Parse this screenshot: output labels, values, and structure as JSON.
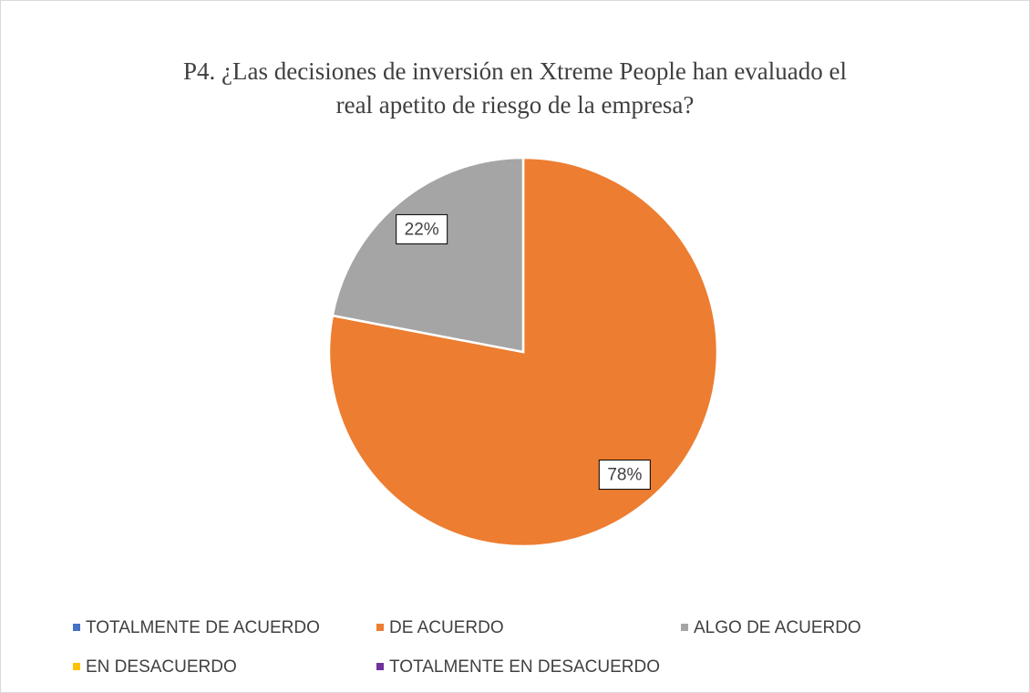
{
  "chart_data": {
    "type": "pie",
    "title": "P4. ¿Las decisiones de inversión en Xtreme People han evaluado el real apetito de riesgo de la empresa?",
    "categories": [
      "TOTALMENTE DE ACUERDO",
      "DE ACUERDO",
      "ALGO DE ACUERDO",
      "EN DESACUERDO",
      "TOTALMENTE EN DESACUERDO"
    ],
    "values": [
      0,
      78,
      22,
      0,
      0
    ],
    "value_labels": [
      null,
      "78%",
      "22%",
      null,
      null
    ],
    "colors": [
      "#4472c4",
      "#ed7d31",
      "#a5a5a5",
      "#ffc000",
      "#7030a0"
    ],
    "legend": "bottom"
  }
}
